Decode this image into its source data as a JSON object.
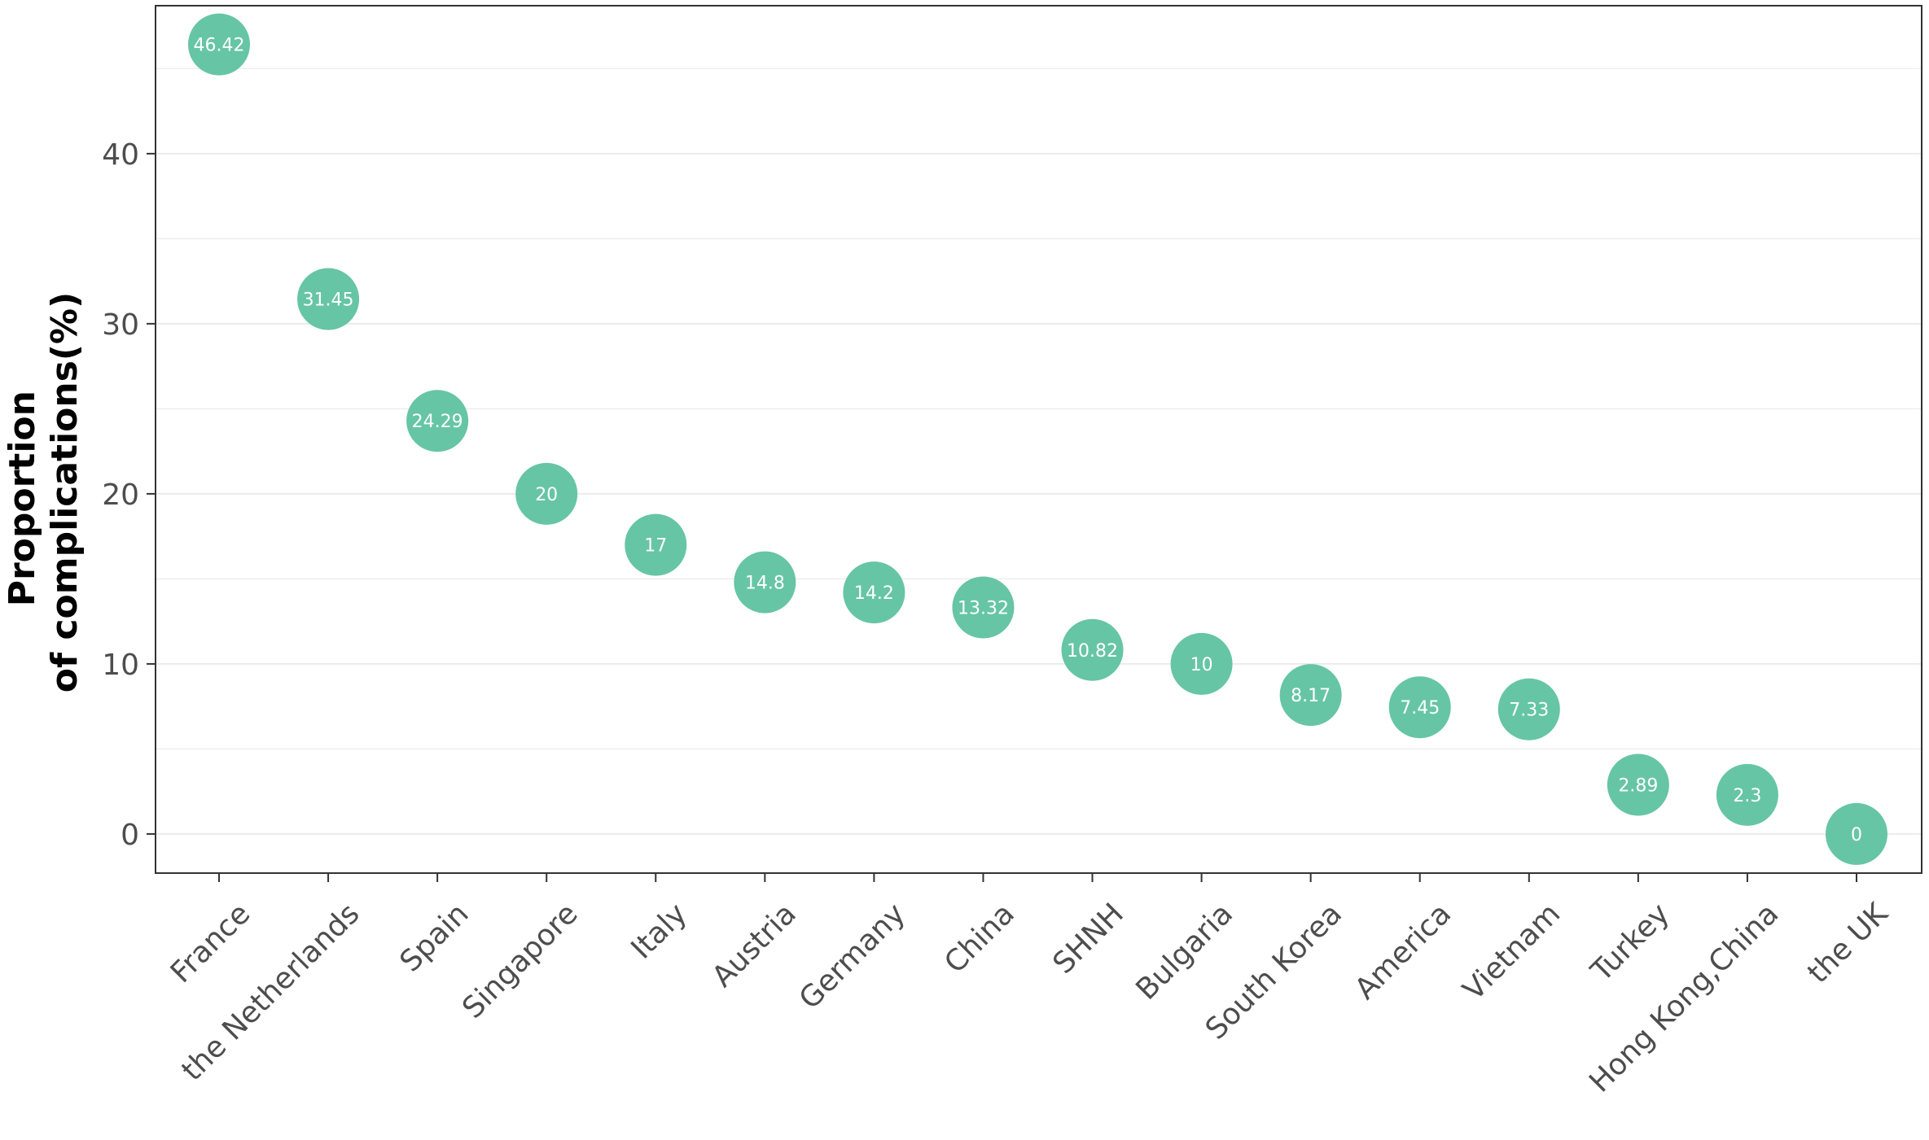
{
  "chart_data": {
    "type": "scatter",
    "title": "",
    "xlabel": "",
    "ylabel_lines": [
      "Proportion",
      "of complications(%)"
    ],
    "categories": [
      "France",
      "the Netherlands",
      "Spain",
      "Singapore",
      "Italy",
      "Austria",
      "Germany",
      "China",
      "SHNH",
      "Bulgaria",
      "South Korea",
      "America",
      "Vietnam",
      "Turkey",
      "Hong Kong,China",
      "the UK"
    ],
    "values": [
      46.42,
      31.45,
      24.29,
      20,
      17,
      14.8,
      14.2,
      13.32,
      10.82,
      10,
      8.17,
      7.45,
      7.33,
      2.89,
      2.3,
      0
    ],
    "value_labels": [
      "46.42",
      "31.45",
      "24.29",
      "20",
      "17",
      "14.8",
      "14.2",
      "13.32",
      "10.82",
      "10",
      "8.17",
      "7.45",
      "7.33",
      "2.89",
      "2.3",
      "0"
    ],
    "ylim": [
      -2.3,
      48.7
    ],
    "y_ticks": [
      0,
      10,
      20,
      30,
      40
    ],
    "y_tick_labels": [
      "0",
      "10",
      "20",
      "30",
      "40"
    ],
    "y_minor_grid": [
      5,
      15,
      25,
      35,
      45
    ],
    "grid": "horizontal",
    "legend": "none",
    "colors": {
      "point": "#66C5A5",
      "point_label": "#ffffff",
      "grid": "#ebebeb",
      "axis": "#333333",
      "tick_label": "#4d4d4d",
      "axis_title": "#000000"
    }
  }
}
